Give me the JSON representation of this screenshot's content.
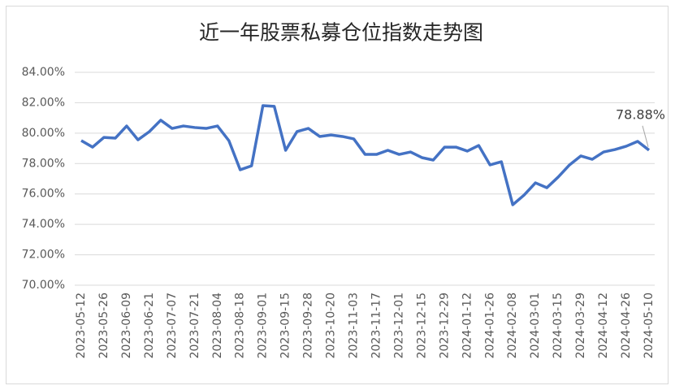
{
  "chart_data": {
    "type": "line",
    "title": "近一年股票私募仓位指数走势图",
    "categories": [
      "2023-05-12",
      null,
      "2023-05-26",
      null,
      "2023-06-09",
      null,
      "2023-06-21",
      null,
      "2023-07-07",
      null,
      "2023-07-21",
      null,
      "2023-08-04",
      null,
      "2023-08-18",
      null,
      "2023-09-01",
      null,
      "2023-09-15",
      null,
      "2023-09-28",
      null,
      "2023-10-20",
      null,
      "2023-11-03",
      null,
      "2023-11-17",
      null,
      "2023-12-01",
      null,
      "2023-12-15",
      null,
      "2023-12-29",
      null,
      "2024-01-12",
      null,
      "2024-01-26",
      null,
      "2024-02-08",
      null,
      "2024-03-01",
      null,
      "2024-03-15",
      null,
      "2024-03-29",
      null,
      "2024-04-12",
      null,
      "2024-04-26",
      null,
      "2024-05-10"
    ],
    "series": [
      {
        "color": "#4472c4",
        "values": [
          79.51,
          79.08,
          79.72,
          79.67,
          80.47,
          79.56,
          80.1,
          80.85,
          80.31,
          80.47,
          80.37,
          80.31,
          80.47,
          79.51,
          77.59,
          77.85,
          81.81,
          81.76,
          78.87,
          80.1,
          80.31,
          79.78,
          79.88,
          79.78,
          79.62,
          78.6,
          78.6,
          78.87,
          78.6,
          78.76,
          78.39,
          78.23,
          79.08,
          79.08,
          78.82,
          79.19,
          77.91,
          78.12,
          75.29,
          75.93,
          76.73,
          76.41,
          77.11,
          77.91,
          78.5,
          78.28,
          78.76,
          78.92,
          79.14,
          79.46,
          78.88
        ],
        "value_labels": [
          null,
          null,
          null,
          null,
          null,
          null,
          null,
          null,
          null,
          null,
          null,
          null,
          null,
          null,
          null,
          null,
          null,
          null,
          null,
          null,
          null,
          null,
          null,
          null,
          null,
          null,
          null,
          null,
          null,
          null,
          null,
          null,
          null,
          null,
          null,
          null,
          null,
          null,
          null,
          null,
          null,
          null,
          null,
          null,
          null,
          null,
          null,
          null,
          null,
          null,
          "78.88%"
        ]
      }
    ],
    "ylim": [
      70,
      84
    ],
    "yticks": [
      {
        "value": 70,
        "label": "70.00%"
      },
      {
        "value": 72,
        "label": "72.00%"
      },
      {
        "value": 74,
        "label": "74.00%"
      },
      {
        "value": 76,
        "label": "76.00%"
      },
      {
        "value": 78,
        "label": "78.00%"
      },
      {
        "value": 80,
        "label": "80.00%"
      },
      {
        "value": 82,
        "label": "82.00%"
      },
      {
        "value": 84,
        "label": "84.00%"
      }
    ],
    "grid": true
  }
}
